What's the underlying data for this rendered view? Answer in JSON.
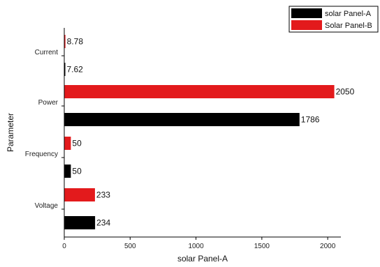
{
  "chart_data": {
    "type": "bar",
    "orientation": "horizontal",
    "categories": [
      "Current",
      "Power",
      "Frequency",
      "Voltage"
    ],
    "series": [
      {
        "name": "solar Panel-A",
        "color": "#000000",
        "values": [
          7.62,
          1786,
          50,
          234
        ]
      },
      {
        "name": "Solar Panel-B",
        "color": "#e31a1c",
        "values": [
          8.78,
          2050,
          50,
          233
        ]
      }
    ],
    "data_labels": {
      "solar Panel-A": [
        "7.62",
        "1786",
        "50",
        "234"
      ],
      "Solar Panel-B": [
        "8.78",
        "2050",
        "50",
        "233"
      ]
    },
    "xlabel": "solar Panel-A",
    "ylabel": "Parameter",
    "xlim": [
      0,
      2100
    ],
    "x_ticks": [
      "0",
      "500",
      "1000",
      "1500",
      "2000"
    ],
    "legend_position": "top-right",
    "grid": false
  }
}
